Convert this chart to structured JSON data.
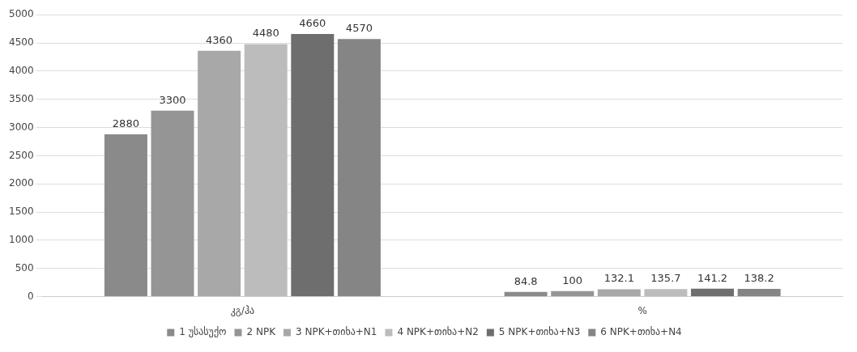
{
  "chart_data": {
    "type": "bar",
    "categories": [
      "კგ/ჰა",
      "%"
    ],
    "series": [
      {
        "name": "1 უსასუქო",
        "color": "#8a8a8a",
        "values": [
          2880,
          84.8
        ]
      },
      {
        "name": "2 NPK",
        "color": "#959595",
        "values": [
          3300,
          100
        ]
      },
      {
        "name": "3 NPK+თიხა+N1",
        "color": "#a8a8a8",
        "values": [
          4360,
          132.1
        ]
      },
      {
        "name": "4 NPK+თიხა+N2",
        "color": "#bcbcbc",
        "values": [
          4480,
          135.7
        ]
      },
      {
        "name": "5 NPK+თიხა+N3",
        "color": "#6e6e6e",
        "values": [
          4660,
          141.2
        ]
      },
      {
        "name": "6 NPK+თიხა+N4",
        "color": "#858585",
        "values": [
          4570,
          138.2
        ]
      }
    ],
    "ylim": [
      0,
      5000
    ],
    "yticks": [
      0,
      500,
      1000,
      1500,
      2000,
      2500,
      3000,
      3500,
      4000,
      4500,
      5000
    ],
    "grid": "y",
    "legend": "bottom",
    "data_labels": true
  }
}
